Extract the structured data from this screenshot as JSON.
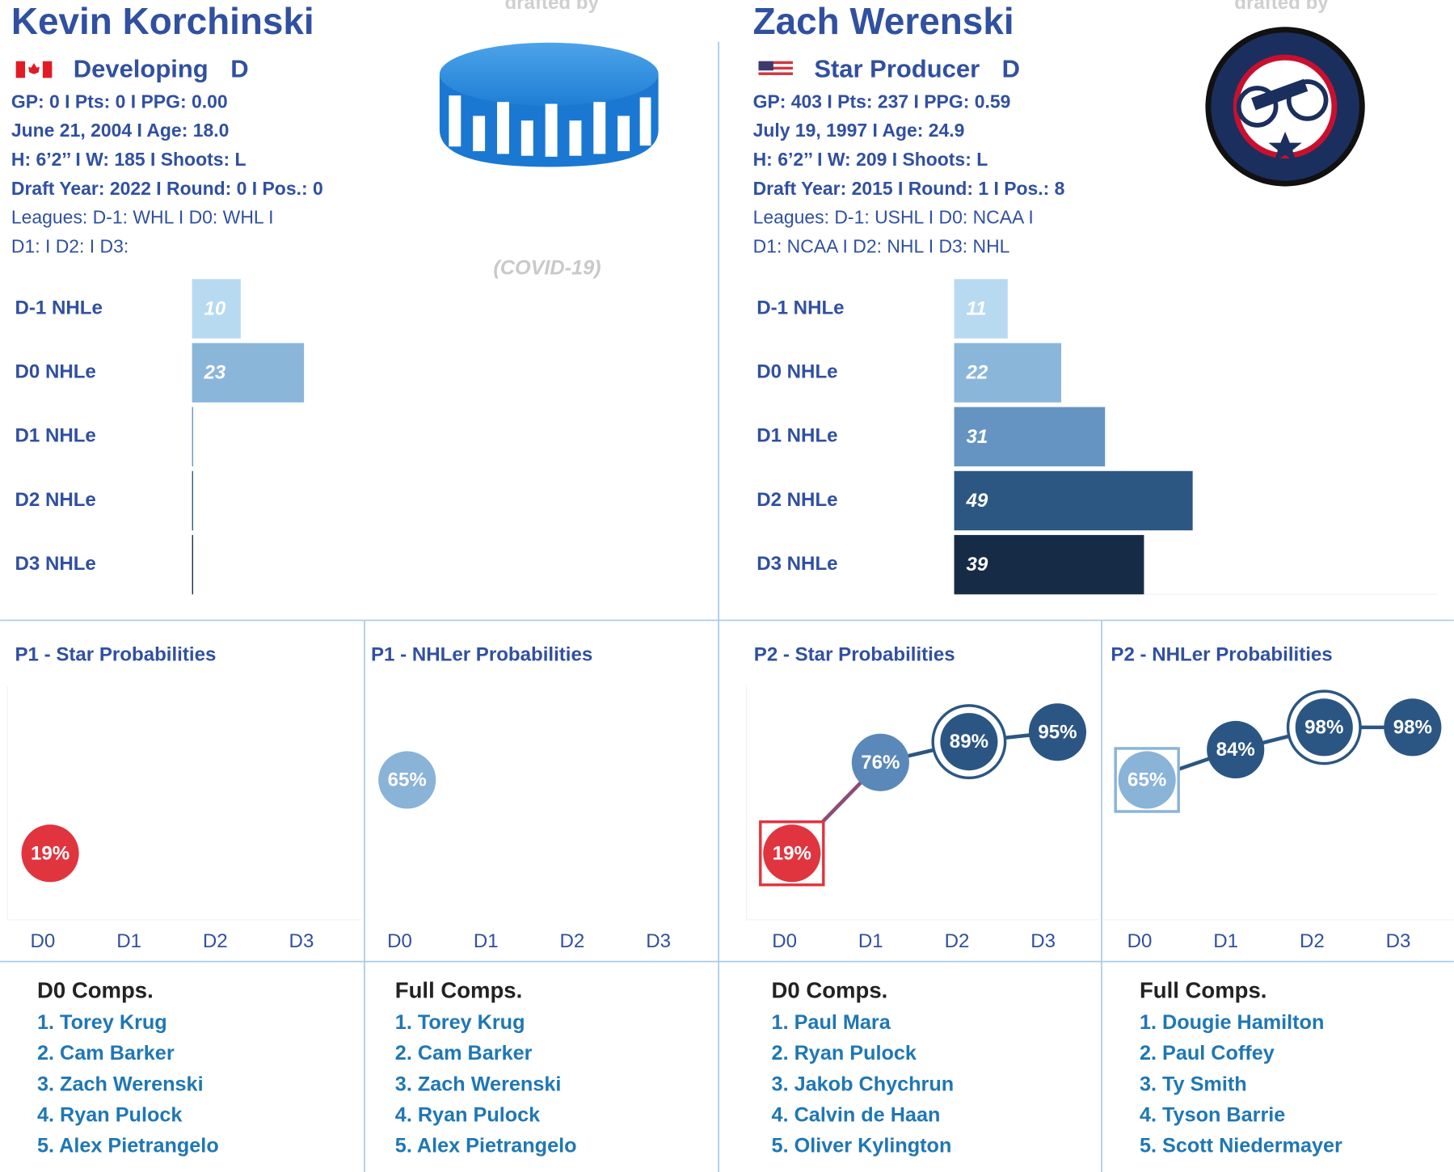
{
  "players": [
    {
      "name": "Kevin Korchinski",
      "drafted_by": "drafted by",
      "status": "Developing",
      "position": "D",
      "info": [
        "GP: 0 I Pts: 0 I PPG: 0.00",
        "June 21, 2004 I Age: 18.0",
        "H: 6’2’’ I W: 185 I Shoots: L",
        "Draft Year: 2022 I Round: 0 I Pos.: 0",
        "Leagues: D-1: WHL I D0: WHL I",
        "D1:  I D2:  I D3:"
      ]
    },
    {
      "name": "Zach Werenski",
      "drafted_by": "drafted by",
      "status": "Star Producer",
      "position": "D",
      "info": [
        "GP: 403 I Pts: 237 I PPG: 0.59",
        "July 19, 1997 I Age: 24.9",
        "H: 6’2’’ I W: 209 I Shoots: L",
        "Draft Year: 2015 I Round: 1 I Pos.: 8",
        "Leagues: D-1: USHL I D0: NCAA I",
        "D1: NCAA I D2: NHL I D3: NHL"
      ]
    }
  ],
  "note": "(COVID-19)",
  "chart_data": [
    {
      "type": "bar",
      "orientation": "horizontal",
      "categories": [
        "D-1 NHLe",
        "D0 NHLe",
        "D1 NHLe",
        "D2 NHLe",
        "D3 NHLe"
      ],
      "values": [
        10,
        23,
        0,
        0,
        0
      ],
      "colors": [
        "#b7daf0",
        "#8ab6da",
        "#6694c2",
        "#2b5782",
        "#162b45"
      ]
    },
    {
      "type": "bar",
      "orientation": "horizontal",
      "categories": [
        "D-1 NHLe",
        "D0 NHLe",
        "D1 NHLe",
        "D2 NHLe",
        "D3 NHLe"
      ],
      "values": [
        11,
        22,
        31,
        49,
        39
      ],
      "colors": [
        "#b7daf0",
        "#8ab6da",
        "#6694c2",
        "#2b5782",
        "#162b45"
      ]
    },
    {
      "type": "line",
      "title": "P1 - Star Probabilities",
      "categories": [
        "D0",
        "D1",
        "D2",
        "D3"
      ],
      "series": [
        {
          "values": [
            19,
            null,
            null,
            null
          ],
          "value_labels": [
            "19%",
            null,
            null,
            null
          ],
          "colors": [
            "#e0353f",
            null,
            null,
            null
          ],
          "markers": [
            "circle",
            null,
            null,
            null
          ]
        }
      ]
    },
    {
      "type": "line",
      "title": "P1 - NHLer Probabilities",
      "categories": [
        "D0",
        "D1",
        "D2",
        "D3"
      ],
      "series": [
        {
          "values": [
            65,
            null,
            null,
            null
          ],
          "value_labels": [
            "65%",
            null,
            null,
            null
          ],
          "colors": [
            "#8ab3d8",
            null,
            null,
            null
          ],
          "markers": [
            "circle",
            null,
            null,
            null
          ]
        }
      ]
    },
    {
      "type": "line",
      "title": "P2 - Star Probabilities",
      "categories": [
        "D0",
        "D1",
        "D2",
        "D3"
      ],
      "series": [
        {
          "values": [
            19,
            76,
            89,
            95
          ],
          "value_labels": [
            "19%",
            "76%",
            "89%",
            "95%"
          ],
          "colors": [
            "#e0353f",
            "#5a88b8",
            "#2b5684",
            "#2b5684"
          ],
          "markers": [
            "square",
            "circle",
            "ring",
            "circle"
          ]
        }
      ]
    },
    {
      "type": "line",
      "title": "P2 - NHLer Probabilities",
      "categories": [
        "D0",
        "D1",
        "D2",
        "D3"
      ],
      "series": [
        {
          "values": [
            65,
            84,
            98,
            98
          ],
          "value_labels": [
            "65%",
            "84%",
            "98%",
            "98%"
          ],
          "colors": [
            "#8ab3d8",
            "#2b5684",
            "#2b5684",
            "#2b5684"
          ],
          "markers": [
            "square",
            "circle",
            "ring",
            "circle"
          ]
        }
      ]
    }
  ],
  "comps": [
    {
      "title": "D0 Comps.",
      "items": [
        "1. Torey Krug",
        "2. Cam Barker",
        "3. Zach Werenski",
        "4. Ryan Pulock",
        "5. Alex Pietrangelo"
      ]
    },
    {
      "title": "Full Comps.",
      "items": [
        "1. Torey Krug",
        "2. Cam Barker",
        "3. Zach Werenski",
        "4. Ryan Pulock",
        "5. Alex Pietrangelo"
      ]
    },
    {
      "title": "D0 Comps.",
      "items": [
        "1. Paul Mara",
        "2. Ryan Pulock",
        "3. Jakob Chychrun",
        "4. Calvin de Haan",
        "5. Oliver Kylington"
      ]
    },
    {
      "title": "Full Comps.",
      "items": [
        "1. Dougie Hamilton",
        "2. Paul Coffey",
        "3. Ty Smith",
        "4. Tyson Barrie",
        "5. Scott Niedermayer"
      ]
    }
  ]
}
